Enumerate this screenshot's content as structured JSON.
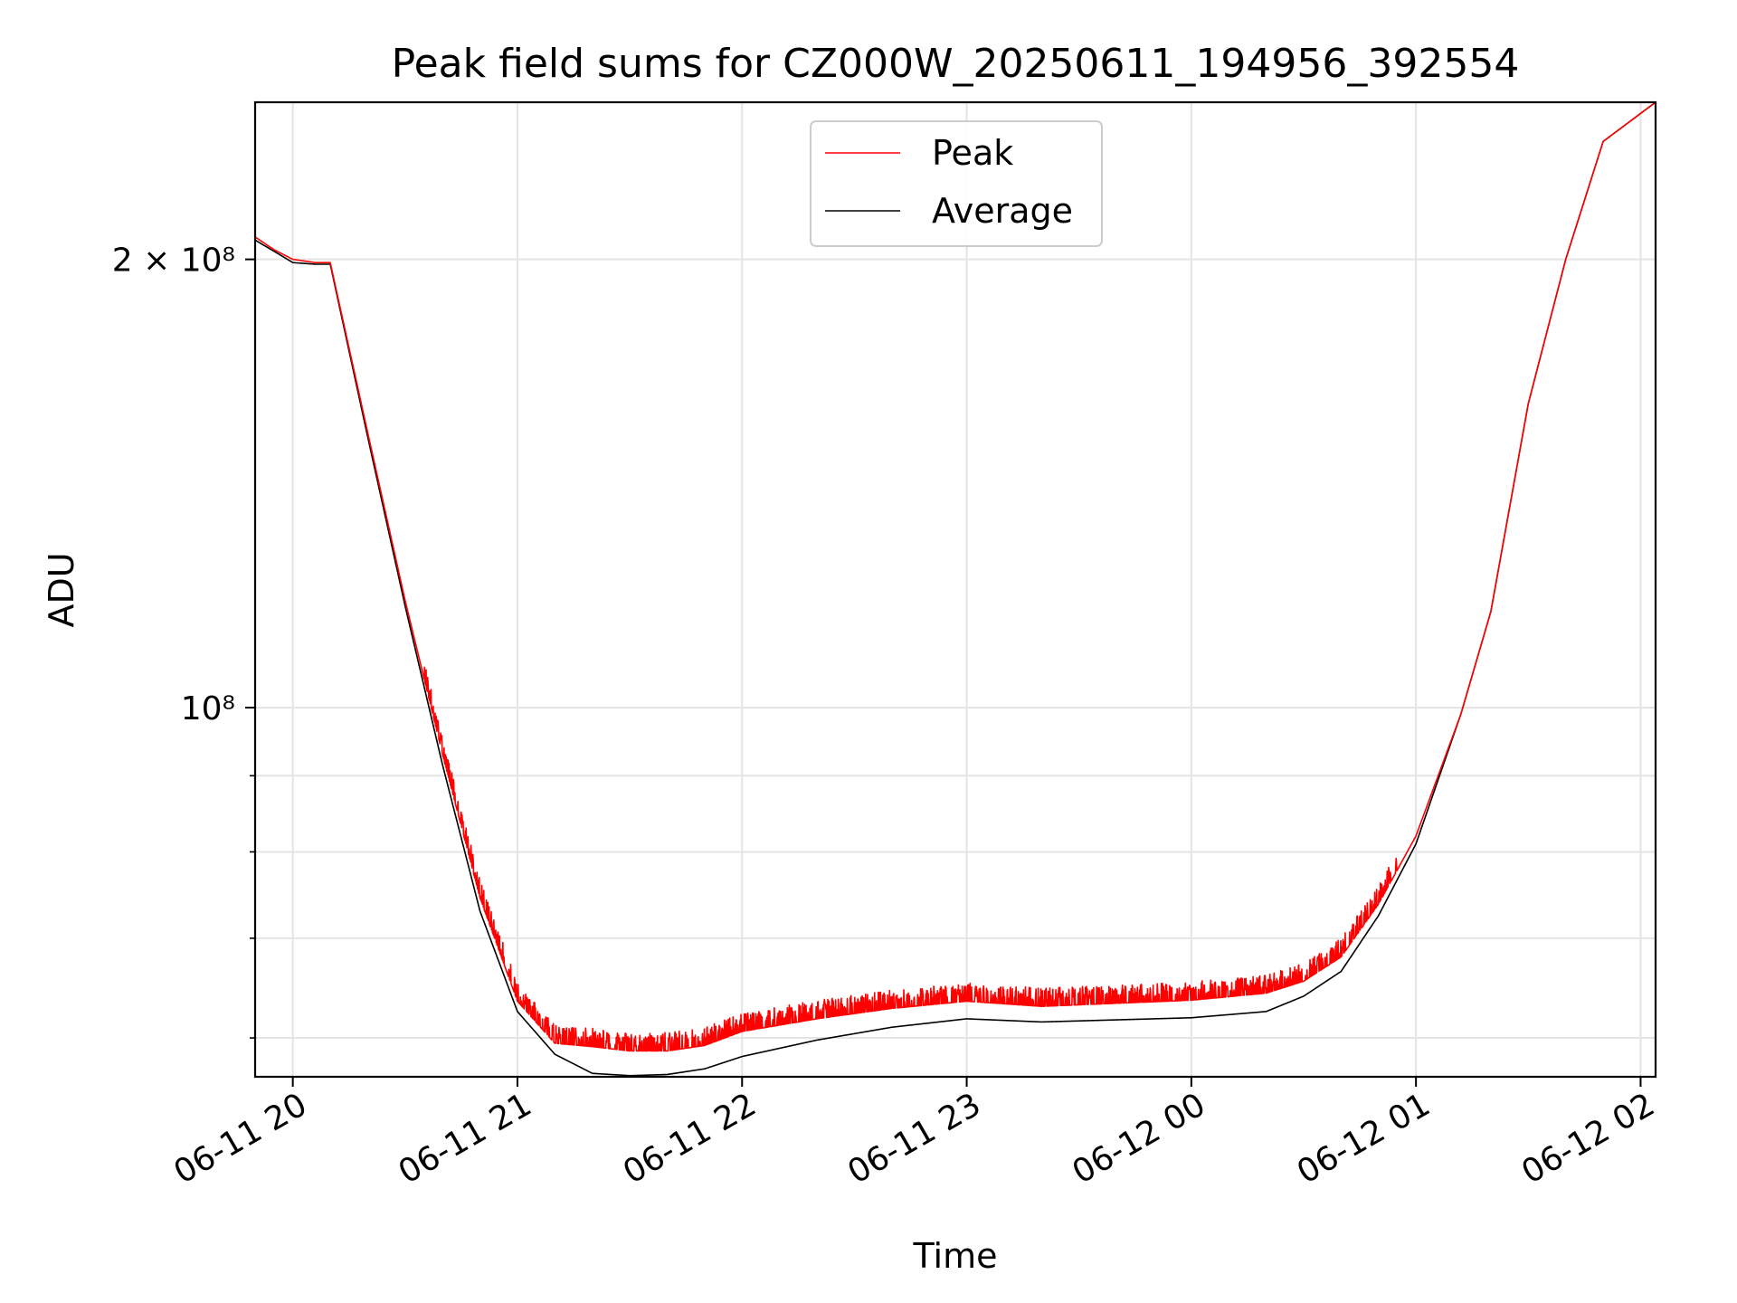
{
  "chart_data": {
    "type": "line",
    "title": "Peak field sums for CZ000W_20250611_194956_392554",
    "xlabel": "Time",
    "ylabel": "ADU",
    "y_scale": "log",
    "x_axis_type": "datetime",
    "xlim": [
      "2025-06-11 19:49:56",
      "2025-06-12 02:04"
    ],
    "ylim": [
      56500000,
      255000000
    ],
    "x_ticks": [
      {
        "value": "2025-06-11 20:00",
        "label": "06-11 20"
      },
      {
        "value": "2025-06-11 21:00",
        "label": "06-11 21"
      },
      {
        "value": "2025-06-11 22:00",
        "label": "06-11 22"
      },
      {
        "value": "2025-06-11 23:00",
        "label": "06-11 23"
      },
      {
        "value": "2025-06-12 00:00",
        "label": "06-12 00"
      },
      {
        "value": "2025-06-12 01:00",
        "label": "06-12 01"
      },
      {
        "value": "2025-06-12 02:00",
        "label": "06-12 02"
      }
    ],
    "y_ticks": [
      {
        "value": 200000000,
        "label": "2 × 10⁸"
      },
      {
        "value": 100000000,
        "label": "10⁸"
      }
    ],
    "y_minor_ticks": [
      60000000,
      70000000,
      80000000,
      90000000
    ],
    "grid": true,
    "legend_position": "top-center",
    "series": [
      {
        "name": "Peak",
        "color": "#ff0000",
        "noisy": true,
        "x": [
          "2025-06-11 19:50",
          "2025-06-11 19:55",
          "2025-06-11 20:00",
          "2025-06-11 20:06",
          "2025-06-11 20:10",
          "2025-06-11 20:20",
          "2025-06-11 20:30",
          "2025-06-11 20:40",
          "2025-06-11 20:50",
          "2025-06-11 21:00",
          "2025-06-11 21:10",
          "2025-06-11 21:20",
          "2025-06-11 21:30",
          "2025-06-11 21:40",
          "2025-06-11 21:50",
          "2025-06-11 22:00",
          "2025-06-11 22:20",
          "2025-06-11 22:40",
          "2025-06-11 23:00",
          "2025-06-11 23:20",
          "2025-06-11 23:40",
          "2025-06-12 00:00",
          "2025-06-12 00:20",
          "2025-06-12 00:30",
          "2025-06-12 00:40",
          "2025-06-12 00:50",
          "2025-06-12 01:00",
          "2025-06-12 01:12",
          "2025-06-12 01:20",
          "2025-06-12 01:30",
          "2025-06-12 01:40",
          "2025-06-12 01:50",
          "2025-06-12 02:04"
        ],
        "y": [
          207000000,
          203000000,
          200000000,
          199000000,
          199000000,
          153000000,
          118000000,
          93000000,
          74500000,
          63500000,
          59500000,
          59200000,
          58800000,
          58800000,
          59300000,
          60600000,
          61800000,
          62800000,
          63500000,
          63000000,
          63300000,
          63600000,
          64300000,
          65500000,
          68000000,
          73800000,
          82000000,
          99000000,
          116000000,
          160000000,
          200000000,
          240000000,
          255000000
        ]
      },
      {
        "name": "Average",
        "color": "#000000",
        "noisy": false,
        "x": [
          "2025-06-11 19:50",
          "2025-06-11 19:55",
          "2025-06-11 20:00",
          "2025-06-11 20:06",
          "2025-06-11 20:10",
          "2025-06-11 20:20",
          "2025-06-11 20:30",
          "2025-06-11 20:40",
          "2025-06-11 20:50",
          "2025-06-11 21:00",
          "2025-06-11 21:10",
          "2025-06-11 21:20",
          "2025-06-11 21:30",
          "2025-06-11 21:40",
          "2025-06-11 21:50",
          "2025-06-11 22:00",
          "2025-06-11 22:20",
          "2025-06-11 22:40",
          "2025-06-11 23:00",
          "2025-06-11 23:20",
          "2025-06-11 23:40",
          "2025-06-12 00:00",
          "2025-06-12 00:20",
          "2025-06-12 00:30",
          "2025-06-12 00:40",
          "2025-06-12 00:50",
          "2025-06-12 01:00",
          "2025-06-12 01:12",
          "2025-06-12 01:20",
          "2025-06-12 01:30",
          "2025-06-12 01:40",
          "2025-06-12 01:50",
          "2025-06-12 02:04"
        ],
        "y": [
          206000000,
          202500000,
          199000000,
          198500000,
          198500000,
          152000000,
          117000000,
          91500000,
          73000000,
          62500000,
          58500000,
          56800000,
          56600000,
          56700000,
          57200000,
          58300000,
          59800000,
          61000000,
          61800000,
          61500000,
          61700000,
          61900000,
          62500000,
          64000000,
          66500000,
          72500000,
          81000000,
          99000000,
          116000000,
          160000000,
          200000000,
          240000000,
          255000000
        ]
      }
    ]
  }
}
